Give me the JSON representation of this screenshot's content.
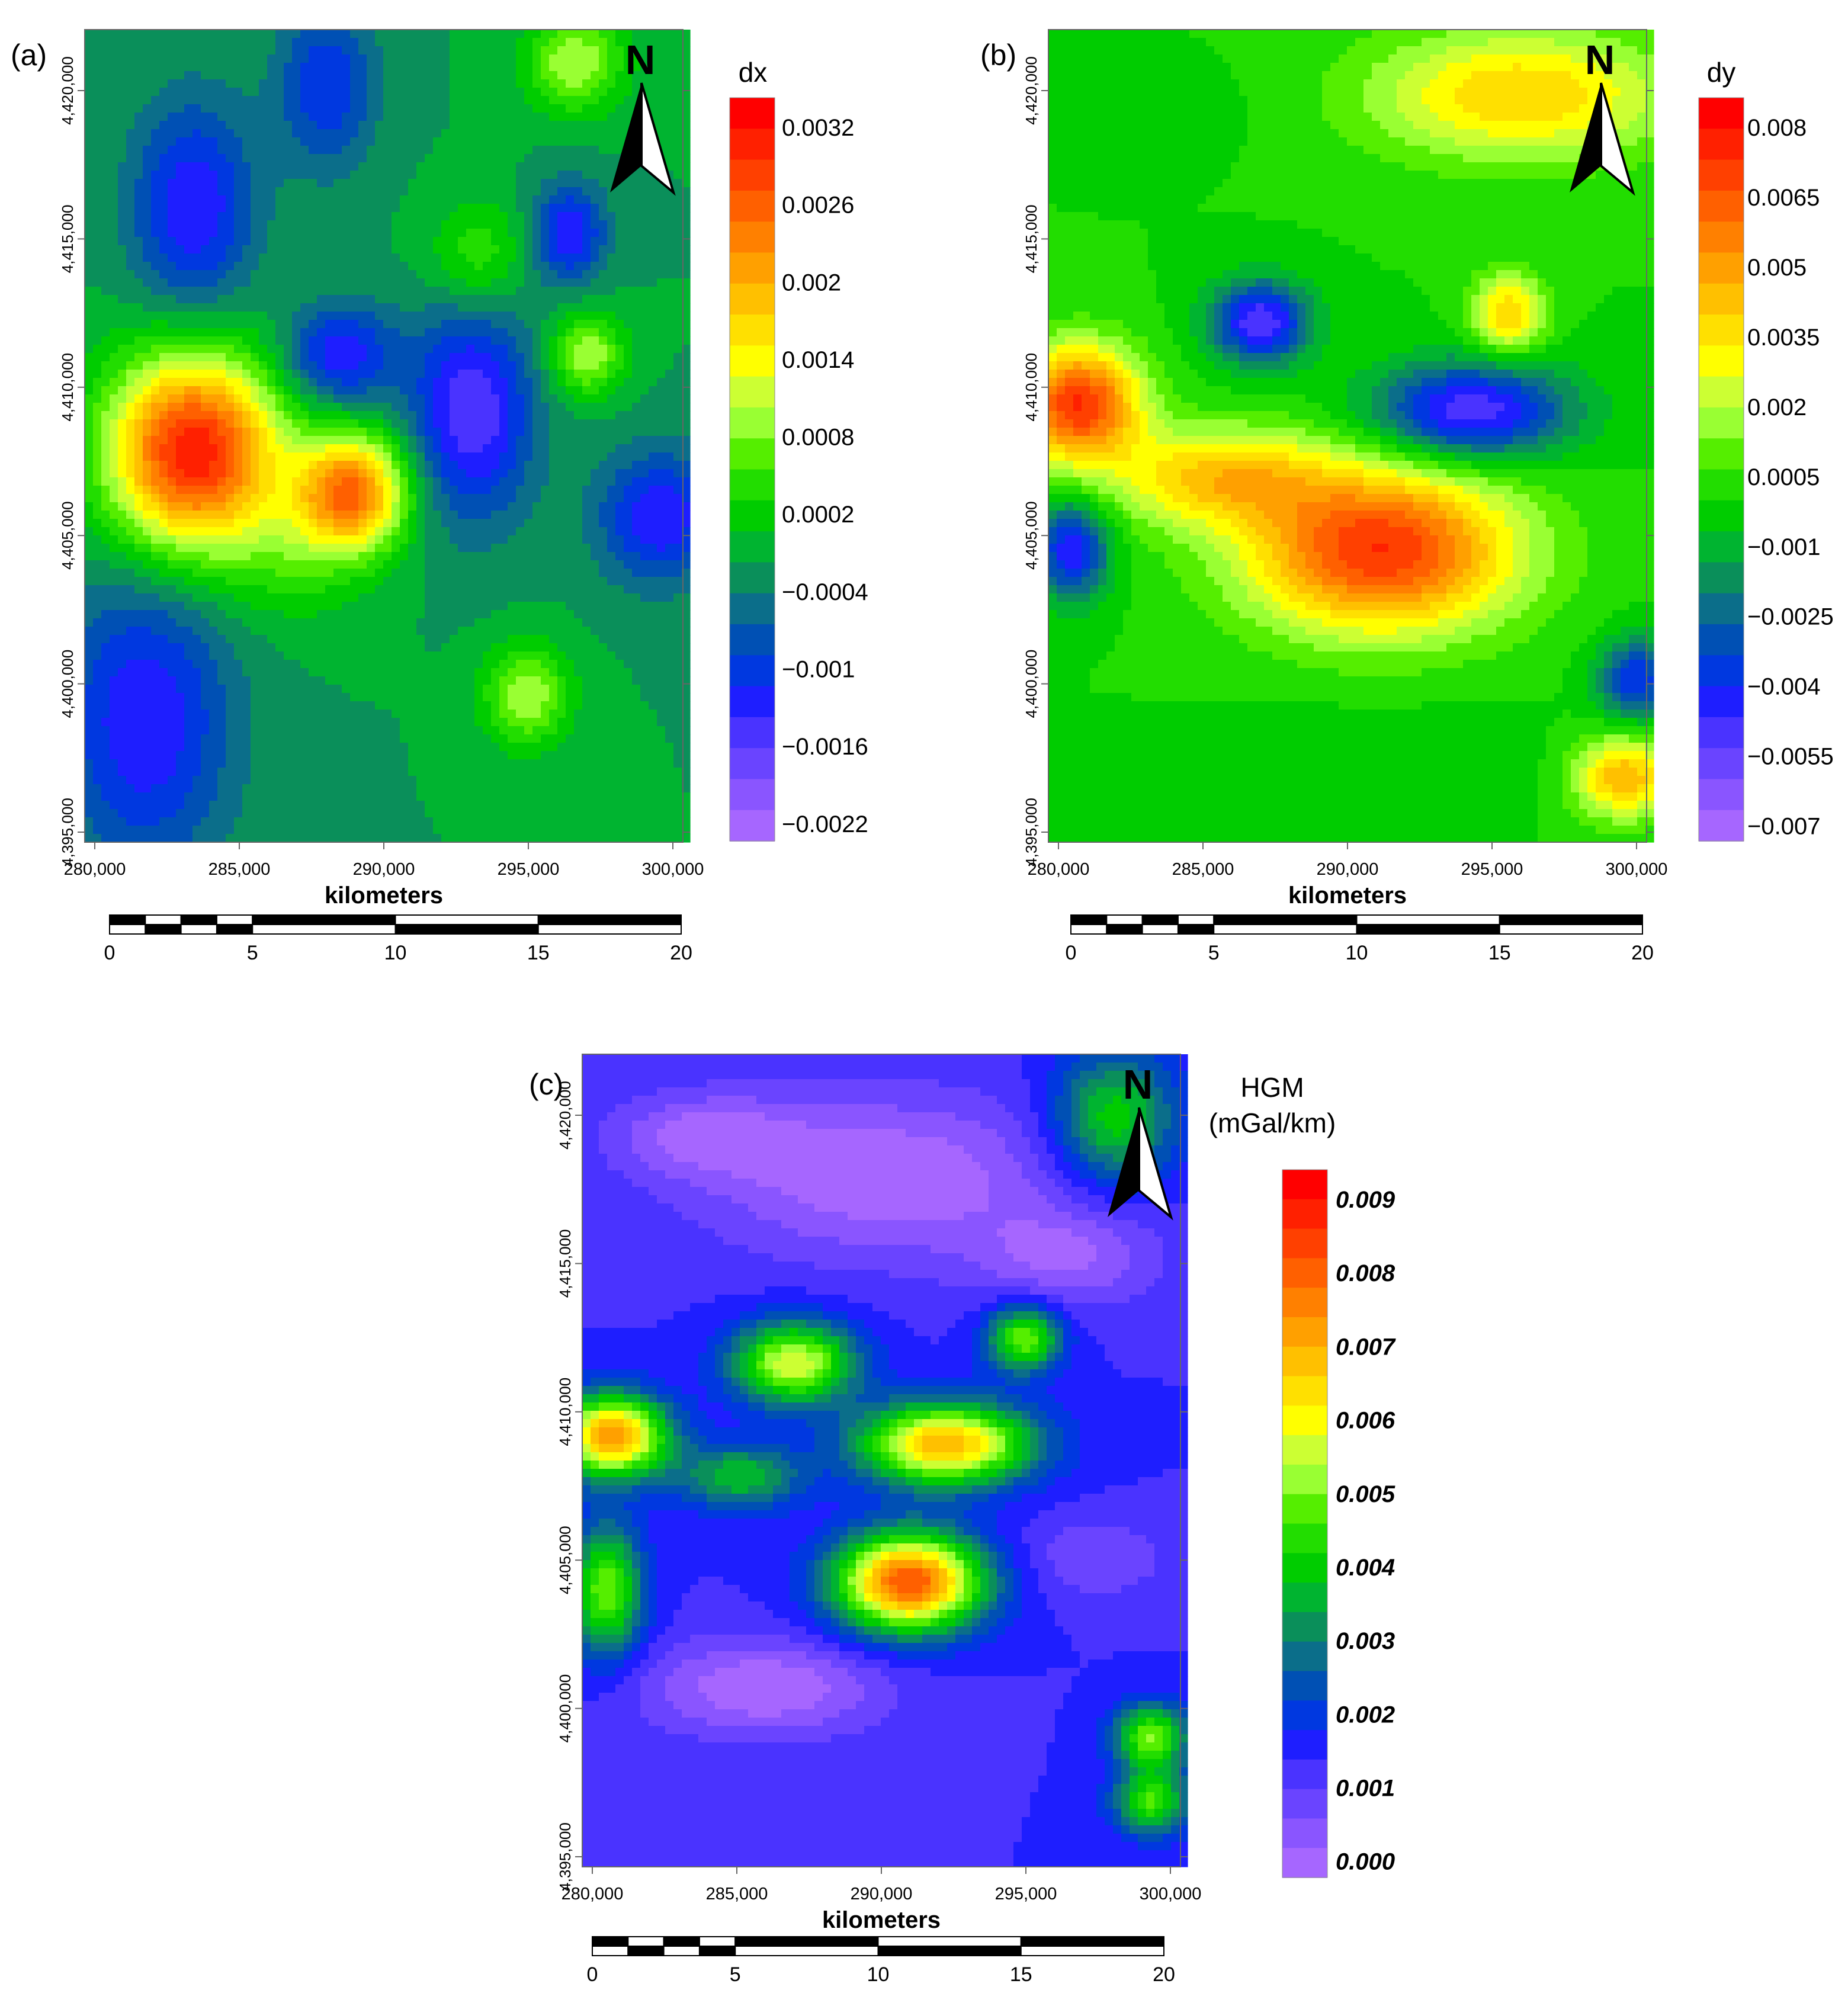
{
  "panels": [
    {
      "id": "a",
      "label": "(a)",
      "legend_title": "dx",
      "legend_labels": [
        "0.0032",
        "0.0026",
        "0.002",
        "0.0014",
        "0.0008",
        "0.0002",
        "−0.0004",
        "−0.001",
        "−0.0016",
        "−0.0022"
      ],
      "legend_italic": false,
      "x_ticks": [
        "280,000",
        "285,000",
        "290,000",
        "295,000",
        "300,000"
      ],
      "y_ticks": [
        "4,395,000",
        "4,400,000",
        "4,405,000",
        "4,410,000",
        "4,415,000",
        "4,420,000"
      ],
      "x_label": "kilometers",
      "scale_ticks": [
        "0",
        "5",
        "10",
        "15",
        "20"
      ],
      "north_label": "N"
    },
    {
      "id": "b",
      "label": "(b)",
      "legend_title": "dy",
      "legend_labels": [
        "0.008",
        "0.0065",
        "0.005",
        "0.0035",
        "0.002",
        "0.0005",
        "−0.001",
        "−0.0025",
        "−0.004",
        "−0.0055",
        "−0.007"
      ],
      "legend_italic": false,
      "x_ticks": [
        "280,000",
        "285,000",
        "290,000",
        "295,000",
        "300,000"
      ],
      "y_ticks": [
        "4,395,000",
        "4,400,000",
        "4,405,000",
        "4,410,000",
        "4,415,000",
        "4,420,000"
      ],
      "x_label": "kilometers",
      "scale_ticks": [
        "0",
        "5",
        "10",
        "15",
        "20"
      ],
      "north_label": "N"
    },
    {
      "id": "c",
      "label": "(c)",
      "legend_title": "HGM",
      "legend_subtitle": "(mGal/km)",
      "legend_labels": [
        "0.009",
        "0.008",
        "0.007",
        "0.006",
        "0.005",
        "0.004",
        "0.003",
        "0.002",
        "0.001",
        "0.000"
      ],
      "legend_italic": true,
      "x_ticks": [
        "280,000",
        "285,000",
        "290,000",
        "295,000",
        "300,000"
      ],
      "y_ticks": [
        "4,395,000",
        "4,400,000",
        "4,405,000",
        "4,410,000",
        "4,415,000",
        "4,420,000"
      ],
      "x_label": "kilometers",
      "scale_ticks": [
        "0",
        "5",
        "10",
        "15",
        "20"
      ],
      "north_label": "N"
    }
  ],
  "colors": {
    "ramp": [
      "#a666ff",
      "#8a55ff",
      "#6a44ff",
      "#4a33ff",
      "#1e1eff",
      "#0038e0",
      "#0050b4",
      "#0b6e8a",
      "#0a8f5a",
      "#00b430",
      "#00cc00",
      "#22dd00",
      "#55ee00",
      "#99ff33",
      "#ccff33",
      "#ffff00",
      "#ffe000",
      "#ffc000",
      "#ffa000",
      "#ff8000",
      "#ff6000",
      "#ff4000",
      "#ff2000",
      "#ff0000"
    ]
  }
}
